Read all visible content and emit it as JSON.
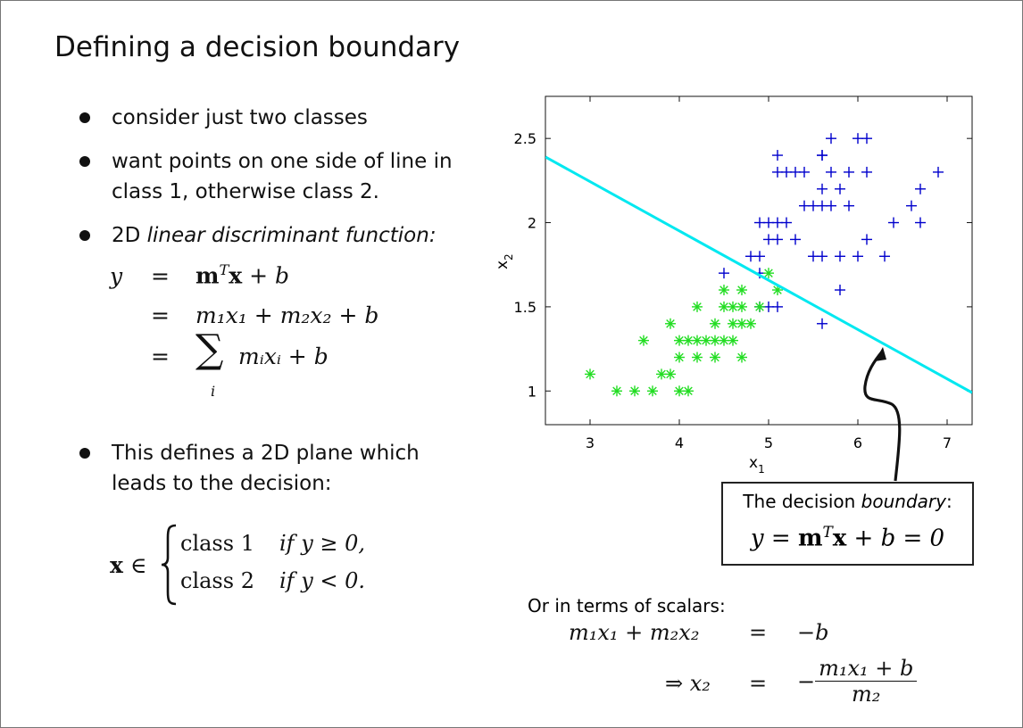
{
  "slide": {
    "title": "Defining a decision boundary",
    "bullets": {
      "b1": "consider just two classes",
      "b2_l1": "want points on one side of line in",
      "b2_l2": "class 1, otherwise class 2.",
      "b3_prefix": "2D ",
      "b3_italic": "linear discriminant function:",
      "b4_l1": "This defines a 2D plane which",
      "b4_l2": "leads to the decision:"
    },
    "equations": {
      "lhs_y": "y",
      "eq": "=",
      "rhs1_m": "m",
      "rhs1_T": "T",
      "rhs1_x": "x",
      "rhs1_tail": " + b",
      "rhs2": "m₁x₁ + m₂x₂ + b",
      "rhs3_sum": "∑",
      "rhs3_sub": "i",
      "rhs3_tail": "mᵢxᵢ + b"
    },
    "decision_rule": {
      "lhs_x": "x",
      "in": "∈",
      "case1_label": "class 1",
      "case1_cond": "if y ≥ 0,",
      "case2_label": "class 2",
      "case2_cond": "if y < 0."
    },
    "callout": {
      "text_prefix": "The decision ",
      "text_italic": "boundary",
      "text_suffix": ":",
      "eq_y": "y",
      "eq_eq": " = ",
      "eq_m": "m",
      "eq_T": "T",
      "eq_x": "x",
      "eq_tail": " + b = 0"
    },
    "scalars": {
      "heading": "Or in terms of scalars:",
      "row1_lhs": "m₁x₁ + m₂x₂",
      "row1_eq": "=",
      "row1_rhs": "−b",
      "row2_lhs": "⇒ x₂",
      "row2_eq": "=",
      "row2_minus": "−",
      "row2_num": "m₁x₁ + b",
      "row2_den": "m₂"
    }
  },
  "chart_data": {
    "type": "scatter",
    "xlabel": "x",
    "xlabel_sub": "1",
    "ylabel": "x",
    "ylabel_sub": "2",
    "xlim": [
      2.5,
      7.28
    ],
    "ylim": [
      0.8,
      2.75
    ],
    "xticks": [
      "3",
      "4",
      "5",
      "6",
      "7"
    ],
    "yticks": [
      "1",
      "1.5",
      "2",
      "2.5"
    ],
    "grid": false,
    "colors": {
      "class1": "#0000cc",
      "class2": "#22dd22",
      "boundary": "#00e8f0"
    },
    "boundary": {
      "x": [
        2.5,
        7.28
      ],
      "y": [
        2.39,
        0.99
      ]
    },
    "series": [
      {
        "marker": "plus",
        "points": [
          [
            5.7,
            2.5
          ],
          [
            6.0,
            2.5
          ],
          [
            6.1,
            2.5
          ],
          [
            5.6,
            2.4
          ],
          [
            5.1,
            2.4
          ],
          [
            5.6,
            2.4
          ],
          [
            5.1,
            2.3
          ],
          [
            5.2,
            2.3
          ],
          [
            5.3,
            2.3
          ],
          [
            5.4,
            2.3
          ],
          [
            5.7,
            2.3
          ],
          [
            5.9,
            2.3
          ],
          [
            6.1,
            2.3
          ],
          [
            6.9,
            2.3
          ],
          [
            5.6,
            2.2
          ],
          [
            5.8,
            2.2
          ],
          [
            6.7,
            2.2
          ],
          [
            5.4,
            2.1
          ],
          [
            5.5,
            2.1
          ],
          [
            5.6,
            2.1
          ],
          [
            5.7,
            2.1
          ],
          [
            5.9,
            2.1
          ],
          [
            6.6,
            2.1
          ],
          [
            4.9,
            2.0
          ],
          [
            5.0,
            2.0
          ],
          [
            5.1,
            2.0
          ],
          [
            5.2,
            2.0
          ],
          [
            6.4,
            2.0
          ],
          [
            6.7,
            2.0
          ],
          [
            5.0,
            1.9
          ],
          [
            5.1,
            1.9
          ],
          [
            5.3,
            1.9
          ],
          [
            6.1,
            1.9
          ],
          [
            4.8,
            1.8
          ],
          [
            4.9,
            1.8
          ],
          [
            5.5,
            1.8
          ],
          [
            5.6,
            1.8
          ],
          [
            5.8,
            1.8
          ],
          [
            6.0,
            1.8
          ],
          [
            6.3,
            1.8
          ],
          [
            4.5,
            1.7
          ],
          [
            4.9,
            1.7
          ],
          [
            5.8,
            1.6
          ],
          [
            4.9,
            1.5
          ],
          [
            5.0,
            1.5
          ],
          [
            5.1,
            1.5
          ],
          [
            5.6,
            1.4
          ]
        ]
      },
      {
        "marker": "asterisk",
        "points": [
          [
            5.0,
            1.7
          ],
          [
            4.5,
            1.6
          ],
          [
            4.7,
            1.6
          ],
          [
            5.1,
            1.6
          ],
          [
            4.2,
            1.5
          ],
          [
            4.5,
            1.5
          ],
          [
            4.6,
            1.5
          ],
          [
            4.7,
            1.5
          ],
          [
            4.9,
            1.5
          ],
          [
            3.9,
            1.4
          ],
          [
            4.4,
            1.4
          ],
          [
            4.6,
            1.4
          ],
          [
            4.7,
            1.4
          ],
          [
            4.8,
            1.4
          ],
          [
            3.6,
            1.3
          ],
          [
            4.0,
            1.3
          ],
          [
            4.1,
            1.3
          ],
          [
            4.2,
            1.3
          ],
          [
            4.3,
            1.3
          ],
          [
            4.4,
            1.3
          ],
          [
            4.5,
            1.3
          ],
          [
            4.6,
            1.3
          ],
          [
            4.0,
            1.2
          ],
          [
            4.2,
            1.2
          ],
          [
            4.4,
            1.2
          ],
          [
            4.7,
            1.2
          ],
          [
            3.0,
            1.1
          ],
          [
            3.8,
            1.1
          ],
          [
            3.9,
            1.1
          ],
          [
            3.3,
            1.0
          ],
          [
            3.5,
            1.0
          ],
          [
            3.7,
            1.0
          ],
          [
            4.0,
            1.0
          ],
          [
            4.1,
            1.0
          ]
        ]
      }
    ]
  }
}
